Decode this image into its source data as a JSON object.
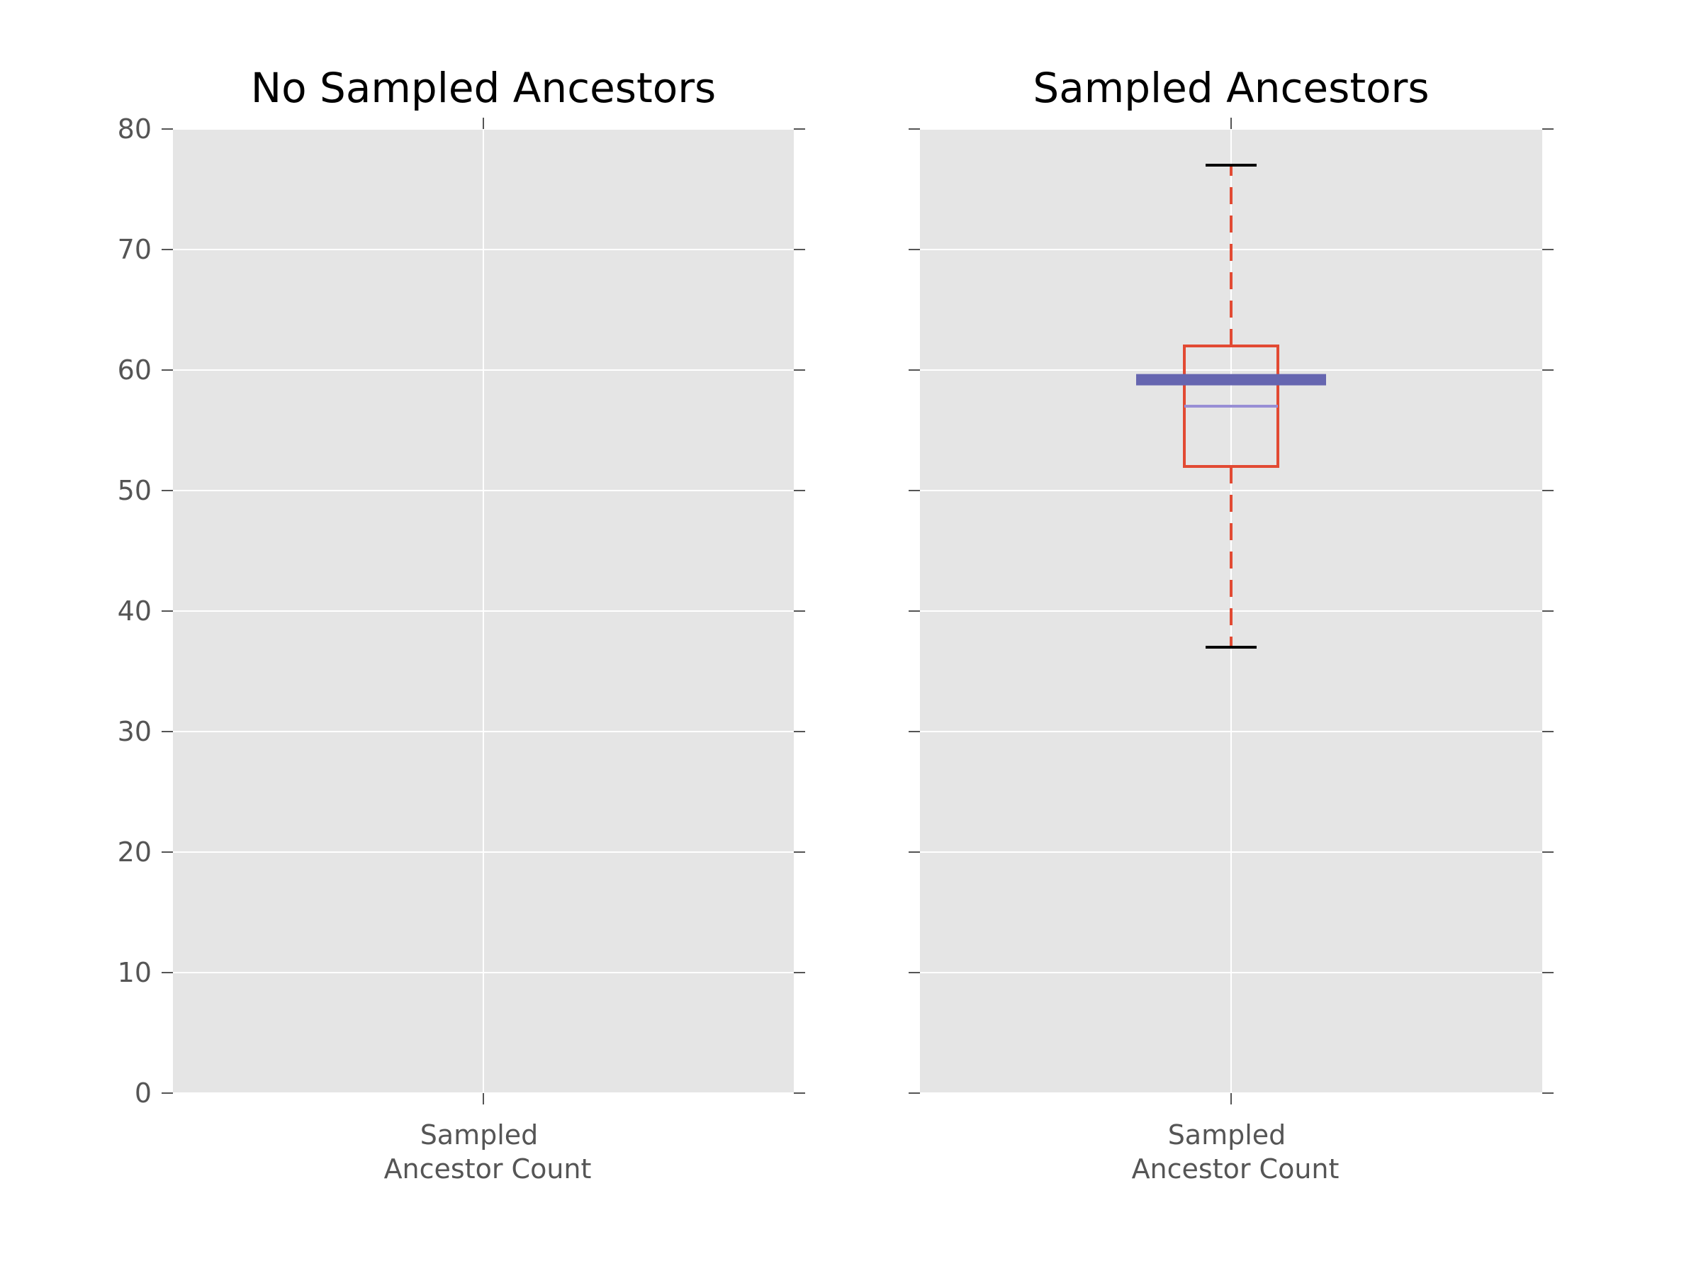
{
  "chart_data": [
    {
      "type": "box",
      "title": "No Sampled Ancestors",
      "categories": [
        "Sampled\nAncestor Count"
      ],
      "ylim": [
        0,
        80
      ],
      "yticks": [
        0,
        10,
        20,
        30,
        40,
        50,
        60,
        70,
        80
      ],
      "show_ytick_labels": true,
      "grid": true,
      "boxes": []
    },
    {
      "type": "box",
      "title": "Sampled Ancestors",
      "categories": [
        "Sampled\nAncestor Count"
      ],
      "ylim": [
        0,
        80
      ],
      "yticks": [
        0,
        10,
        20,
        30,
        40,
        50,
        60,
        70,
        80
      ],
      "show_ytick_labels": false,
      "grid": true,
      "boxes": [
        {
          "whisker_low": 37,
          "q1": 52,
          "median": 57,
          "q3": 62,
          "whisker_high": 77,
          "mean": 59.2
        }
      ]
    }
  ],
  "colors": {
    "background": "#e5e5e5",
    "grid": "#ffffff",
    "box": "#e24a33",
    "whisker": "#e24a33",
    "cap": "#000000",
    "median": "#988ed5",
    "mean": "#6666b0",
    "tick": "#555555"
  }
}
